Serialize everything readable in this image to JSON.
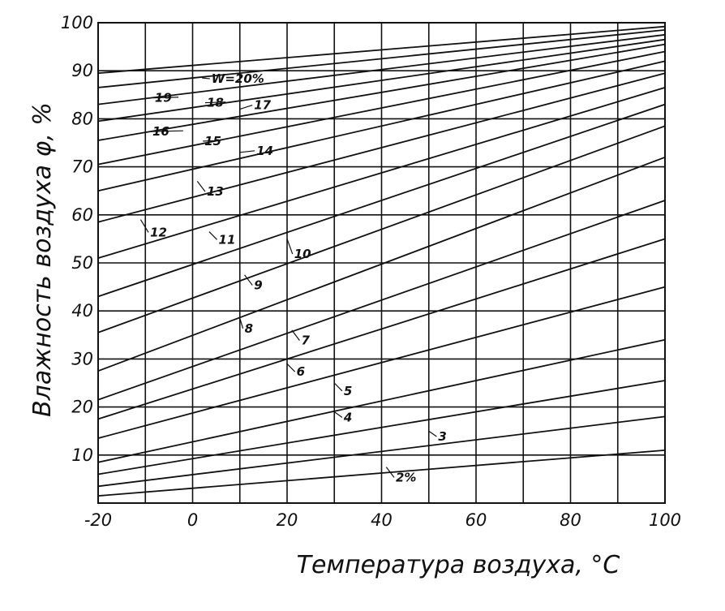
{
  "chart_data": {
    "type": "line",
    "title": "",
    "xlabel": "Температура воздуха, °C",
    "ylabel": "Влажность воздуха φ, %",
    "xlim": [
      -20,
      100
    ],
    "ylim": [
      0,
      100
    ],
    "x_ticks": [
      -20,
      0,
      20,
      40,
      60,
      80,
      100
    ],
    "x_tick_labels": [
      "-20",
      "0",
      "20",
      "40",
      "60",
      "80",
      "100"
    ],
    "y_ticks": [
      10,
      20,
      30,
      40,
      50,
      60,
      70,
      80,
      90,
      100
    ],
    "y_tick_labels": [
      "10",
      "20",
      "30",
      "40",
      "50",
      "60",
      "70",
      "80",
      "90",
      "100"
    ],
    "x_grid_step": 10,
    "y_grid_step": 10,
    "grid": true,
    "legend": "none",
    "series": [
      {
        "label": "2%",
        "x": [
          -20,
          100
        ],
        "y": [
          1.5,
          11
        ]
      },
      {
        "label": "3",
        "x": [
          -20,
          100
        ],
        "y": [
          3.5,
          18
        ]
      },
      {
        "label": "4",
        "x": [
          -20,
          100
        ],
        "y": [
          6,
          25.5
        ]
      },
      {
        "label": "5",
        "x": [
          -20,
          100
        ],
        "y": [
          8.5,
          34
        ]
      },
      {
        "label": "6",
        "x": [
          -20,
          100
        ],
        "y": [
          13.5,
          45
        ]
      },
      {
        "label": "7",
        "x": [
          -20,
          100
        ],
        "y": [
          17.5,
          55
        ]
      },
      {
        "label": "8",
        "x": [
          -20,
          100
        ],
        "y": [
          21.5,
          63
        ]
      },
      {
        "label": "9",
        "x": [
          -20,
          100
        ],
        "y": [
          27.5,
          72
        ]
      },
      {
        "label": "10",
        "x": [
          -20,
          100
        ],
        "y": [
          35.5,
          78.5
        ]
      },
      {
        "label": "11",
        "x": [
          -20,
          100
        ],
        "y": [
          43,
          83
        ]
      },
      {
        "label": "12",
        "x": [
          -20,
          100
        ],
        "y": [
          51,
          86.5
        ]
      },
      {
        "label": "13",
        "x": [
          -20,
          100
        ],
        "y": [
          58.5,
          89.5
        ]
      },
      {
        "label": "14",
        "x": [
          -20,
          100
        ],
        "y": [
          65,
          92
        ]
      },
      {
        "label": "15",
        "x": [
          -20,
          100
        ],
        "y": [
          70.5,
          94
        ]
      },
      {
        "label": "16",
        "x": [
          -20,
          100
        ],
        "y": [
          75.5,
          95.5
        ]
      },
      {
        "label": "17",
        "x": [
          -20,
          100
        ],
        "y": [
          79.5,
          96.5
        ]
      },
      {
        "label": "18",
        "x": [
          -20,
          100
        ],
        "y": [
          83,
          97.5
        ]
      },
      {
        "label": "19",
        "x": [
          -20,
          100
        ],
        "y": [
          86.5,
          98.5
        ]
      },
      {
        "label": "W=20%",
        "x": [
          -20,
          100
        ],
        "y": [
          89.5,
          99.2
        ]
      }
    ],
    "annotations": [
      {
        "text": "2%",
        "x": 43,
        "y": 4.5,
        "anchor_x": 41,
        "anchor_y": 7.5
      },
      {
        "text": "3",
        "x": 52,
        "y": 13,
        "anchor_x": 50,
        "anchor_y": 15
      },
      {
        "text": "4",
        "x": 32,
        "y": 17,
        "anchor_x": 30,
        "anchor_y": 19
      },
      {
        "text": "5",
        "x": 32,
        "y": 22.5,
        "anchor_x": 30,
        "anchor_y": 25
      },
      {
        "text": "6",
        "x": 22,
        "y": 26.5,
        "anchor_x": 20,
        "anchor_y": 29
      },
      {
        "text": "7",
        "x": 23,
        "y": 33,
        "anchor_x": 21,
        "anchor_y": 36
      },
      {
        "text": "8",
        "x": 11,
        "y": 35.5,
        "anchor_x": 10,
        "anchor_y": 38.5
      },
      {
        "text": "9",
        "x": 13,
        "y": 44.5,
        "anchor_x": 11,
        "anchor_y": 47.5
      },
      {
        "text": "10",
        "x": 21.5,
        "y": 51,
        "anchor_x": 20,
        "anchor_y": 55
      },
      {
        "text": "11",
        "x": 5.5,
        "y": 54,
        "anchor_x": 3.5,
        "anchor_y": 56.5
      },
      {
        "text": "12",
        "x": -9,
        "y": 55.5,
        "anchor_x": -11,
        "anchor_y": 59
      },
      {
        "text": "13",
        "x": 3,
        "y": 64,
        "anchor_x": 1,
        "anchor_y": 67
      },
      {
        "text": "14",
        "x": 13.5,
        "y": 72.5,
        "anchor_x": 10,
        "anchor_y": 73
      },
      {
        "text": "15",
        "x": 2.5,
        "y": 74.5,
        "anchor_x": 6,
        "anchor_y": 75.5
      },
      {
        "text": "16",
        "x": -8.5,
        "y": 76.5,
        "anchor_x": -2,
        "anchor_y": 77.5
      },
      {
        "text": "17",
        "x": 13,
        "y": 82,
        "anchor_x": 10,
        "anchor_y": 82
      },
      {
        "text": "18",
        "x": 3,
        "y": 82.5,
        "anchor_x": 7,
        "anchor_y": 83.5
      },
      {
        "text": "19",
        "x": -8,
        "y": 83.5,
        "anchor_x": -3,
        "anchor_y": 84.5
      },
      {
        "text": "W=20%",
        "x": 4,
        "y": 87.5,
        "anchor_x": 2,
        "anchor_y": 88.5
      }
    ]
  }
}
